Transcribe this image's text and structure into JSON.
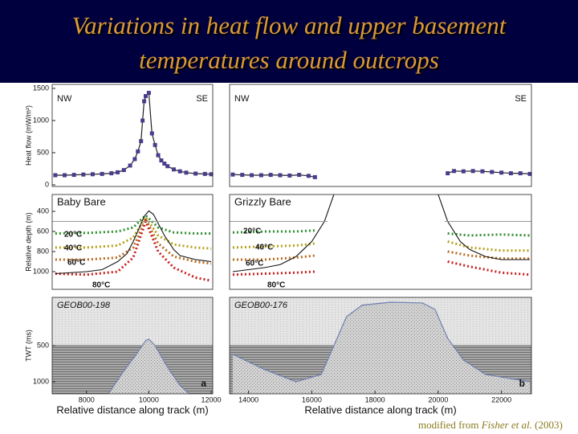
{
  "title": "Variations in heat flow and upper basement temperatures around outcrops",
  "credit": {
    "prefix": "modified from",
    "authors": "Fisher et al.",
    "year": "(2003)"
  },
  "chart_data": [
    {
      "type": "line",
      "left_label": "NW",
      "right_label": "SE",
      "ylabel": "Heat flow (mW/m²)",
      "xlim": [
        6900,
        12050
      ],
      "ylim": [
        -25,
        1562
      ],
      "yticks": [
        0,
        500,
        1000,
        1500
      ],
      "series": [
        {
          "color": "#222222",
          "marker_color": "#4a3c8c",
          "x": [
            7000,
            7300,
            7600,
            7900,
            8200,
            8500,
            8800,
            9000,
            9200,
            9400,
            9550,
            9650,
            9750,
            9800,
            9850,
            9900,
            10000,
            10100,
            10200,
            10300,
            10400,
            10500,
            10600,
            10800,
            11000,
            11200,
            11500,
            11800,
            12000
          ],
          "values": [
            150,
            150,
            155,
            160,
            165,
            170,
            180,
            195,
            230,
            300,
            400,
            520,
            680,
            1000,
            1300,
            1380,
            1430,
            800,
            620,
            460,
            380,
            330,
            290,
            240,
            210,
            190,
            175,
            170,
            165
          ]
        }
      ]
    },
    {
      "type": "line",
      "left_label": "NW",
      "right_label": "SE",
      "xlim": [
        13400,
        22950
      ],
      "ylim": [
        -25,
        1562
      ],
      "series": [
        {
          "color": "#222222",
          "marker_color": "#4a3c8c",
          "x": [
            13500,
            13800,
            14100,
            14400,
            14700,
            15000,
            15300,
            15600,
            15900,
            16100,
            18000,
            20300,
            20500,
            20800,
            21100,
            21400,
            21700,
            22000,
            22300,
            22600,
            22900
          ],
          "values": [
            160,
            155,
            150,
            150,
            155,
            150,
            145,
            155,
            140,
            120,
            null,
            180,
            215,
            210,
            215,
            210,
            200,
            190,
            180,
            180,
            170
          ]
        }
      ]
    },
    {
      "type": "line",
      "title": "Baby Bare",
      "ylabel": "Relative depth (m)",
      "xlim": [
        6900,
        12050
      ],
      "ylim": [
        232,
        1176
      ],
      "y_inverted": true,
      "yticks": [
        400,
        600,
        800,
        1000
      ],
      "series": [
        {
          "name": "20°C",
          "color": "#2f8f2f",
          "x": [
            7000,
            8000,
            9000,
            9500,
            9900,
            10300,
            10800,
            11500,
            12000
          ],
          "values": [
            620,
            615,
            600,
            560,
            440,
            560,
            610,
            620,
            620
          ]
        },
        {
          "name": "40°C",
          "color": "#b5a018",
          "x": [
            7000,
            8000,
            9000,
            9500,
            9900,
            10300,
            10800,
            11500,
            12000
          ],
          "values": [
            760,
            760,
            740,
            660,
            460,
            640,
            730,
            760,
            770
          ]
        },
        {
          "name": "60°C",
          "color": "#b86a1c",
          "x": [
            7000,
            8000,
            9000,
            9500,
            9900,
            10300,
            10800,
            11500,
            12000
          ],
          "values": [
            880,
            880,
            860,
            760,
            480,
            720,
            850,
            900,
            920
          ]
        },
        {
          "name": "80°C",
          "color": "#c81e1e",
          "x": [
            7000,
            8000,
            9000,
            9500,
            9900,
            10300,
            10800,
            11500,
            12000
          ],
          "values": [
            1020,
            1030,
            1000,
            860,
            500,
            800,
            960,
            1060,
            1090
          ]
        },
        {
          "color": "#111111",
          "x": [
            7000,
            7500,
            8000,
            8500,
            9000,
            9300,
            9500,
            9700,
            9850,
            10000,
            10150,
            10300,
            10500,
            10800,
            11000,
            11500,
            12000
          ],
          "values": [
            1020,
            1010,
            1000,
            980,
            900,
            820,
            700,
            560,
            450,
            395,
            430,
            520,
            640,
            780,
            840,
            880,
            900
          ]
        },
        {
          "color": "#999999",
          "x": [
            6900,
            12050
          ],
          "values": [
            500,
            500
          ]
        }
      ]
    },
    {
      "type": "line",
      "title": "Grizzly Bare",
      "xlim": [
        13400,
        22950
      ],
      "ylim": [
        232,
        1176
      ],
      "y_inverted": true,
      "series": [
        {
          "name": "20°C",
          "color": "#2f8f2f",
          "x": [
            13500,
            14500,
            15500,
            16100,
            18000,
            20300,
            21000,
            22000,
            22900
          ],
          "values": [
            610,
            600,
            600,
            590,
            null,
            620,
            640,
            630,
            640
          ]
        },
        {
          "name": "40°C",
          "color": "#b5a018",
          "x": [
            13500,
            14500,
            15500,
            16100,
            18000,
            20300,
            21000,
            22000,
            22900
          ],
          "values": [
            760,
            750,
            740,
            720,
            null,
            700,
            760,
            790,
            790
          ]
        },
        {
          "name": "60°C",
          "color": "#b86a1c",
          "x": [
            13500,
            14500,
            15500,
            16100,
            18000,
            20300,
            21000,
            22000,
            22900
          ],
          "values": [
            880,
            880,
            860,
            840,
            null,
            800,
            840,
            870,
            870
          ]
        },
        {
          "name": "80°C",
          "color": "#c81e1e",
          "x": [
            13500,
            14500,
            15500,
            16100,
            18000,
            20300,
            21000,
            22000,
            22900
          ],
          "values": [
            1030,
            1020,
            1010,
            1000,
            null,
            900,
            950,
            1010,
            1030
          ]
        },
        {
          "color": "#111111",
          "x": [
            13500,
            14500,
            15000,
            15500,
            16000,
            16400,
            16700,
            18000,
            20000,
            20300,
            20700,
            21000,
            21500,
            22000,
            22900
          ],
          "values": [
            1000,
            960,
            930,
            850,
            700,
            500,
            232,
            null,
            232,
            500,
            700,
            780,
            850,
            880,
            880
          ]
        },
        {
          "color": "#999999",
          "x": [
            13400,
            16500,
            18000,
            20200,
            22950
          ],
          "values": [
            500,
            500,
            null,
            500,
            500
          ]
        }
      ]
    },
    {
      "type": "seismic",
      "title": "GEOB00-198",
      "panel_label": "a",
      "ylabel": "TWT (ms)",
      "xlabel": "Relative distance along track (m)",
      "xlim": [
        6900,
        12050
      ],
      "xticks": [
        8000,
        10000,
        12000
      ],
      "ylim": [
        -167,
        1167
      ],
      "y_inverted": true,
      "yticks": [
        500,
        1000
      ],
      "seafloor": 500,
      "series": [
        {
          "color": "#6f7fb0",
          "x": [
            8700,
            9200,
            9600,
            9900,
            10000,
            10200,
            10600,
            11000,
            11300
          ],
          "values": [
            1167,
            850,
            620,
            430,
            411,
            500,
            800,
            1050,
            1167
          ]
        }
      ]
    },
    {
      "type": "seismic",
      "title": "GEOB00-176",
      "panel_label": "b",
      "xlabel": "Relative distance along track (m)",
      "xlim": [
        13400,
        22950
      ],
      "xticks": [
        14000,
        16000,
        18000,
        20000,
        22000
      ],
      "ylim": [
        -167,
        1167
      ],
      "y_inverted": true,
      "seafloor": 500,
      "series": [
        {
          "color": "#6f7fb0",
          "x": [
            13500,
            14500,
            15500,
            16300,
            16700,
            17100,
            17600,
            18500,
            19500,
            19900,
            20300,
            20800,
            21500,
            22900
          ],
          "values": [
            620,
            830,
            1000,
            900,
            500,
            100,
            -60,
            -100,
            -90,
            0,
            400,
            700,
            900,
            1000
          ]
        }
      ]
    }
  ]
}
